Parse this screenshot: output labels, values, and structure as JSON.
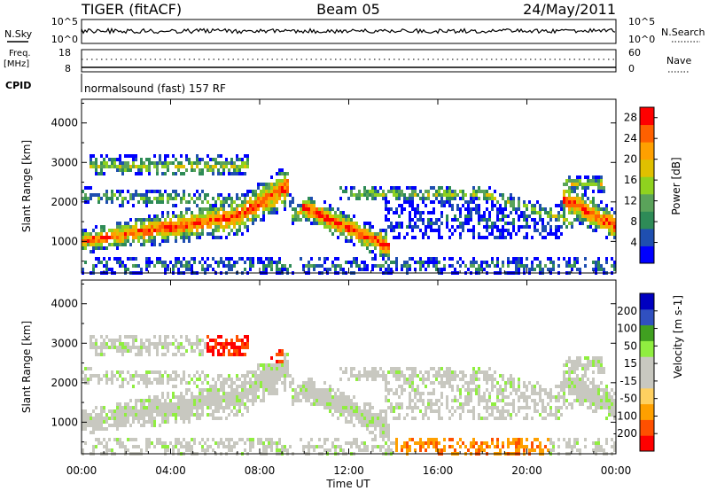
{
  "header": {
    "left": "TIGER (fitACF)",
    "center": "Beam 05",
    "right": "24/May/2011"
  },
  "top_panels": {
    "nsky_label": "N.Sky",
    "nsky_ticks": [
      "10^5",
      "10^0"
    ],
    "nsearch_label": "N.Search",
    "nsearch_ticks": [
      "10^5",
      "10^0"
    ],
    "freq_label_line1": "Freq.",
    "freq_label_line2": "[MHz]",
    "freq_ticks": [
      "18",
      "8"
    ],
    "nave_label": "Nave",
    "nave_ticks": [
      "60",
      "0"
    ],
    "cpid_label": "CPID",
    "cpid_text": "normalsound (fast) 157 RF"
  },
  "colors": {
    "power": [
      "#0000ff",
      "#1f4fb0",
      "#2e8b57",
      "#5aa35a",
      "#8fd21f",
      "#e0c000",
      "#ffa000",
      "#ff6000",
      "#ff0000"
    ],
    "velocity": [
      "#ff0000",
      "#ff5000",
      "#ffa000",
      "#ffd060",
      "#c8c8c0",
      "#c8c8c0",
      "#90ee40",
      "#40a020",
      "#3050c0",
      "#0000c0"
    ]
  },
  "chart_data": [
    {
      "type": "heatmap",
      "name": "power",
      "xlabel": "",
      "ylabel": "Slant Range [km]",
      "x_ticks": [
        "00:00",
        "04:00",
        "08:00",
        "12:00",
        "16:00",
        "20:00",
        "00:00"
      ],
      "x_range_hours": [
        0,
        24
      ],
      "y_ticks": [
        1000,
        2000,
        3000,
        4000
      ],
      "y_range_km": [
        200,
        4600
      ],
      "colorbar_label": "Power [dB]",
      "colorbar_ticks": [
        4,
        8,
        12,
        16,
        20,
        24,
        28
      ],
      "colorbar_range": [
        0,
        30
      ]
    },
    {
      "type": "heatmap",
      "name": "velocity",
      "xlabel": "Time UT",
      "ylabel": "Slant Range [km]",
      "x_ticks": [
        "00:00",
        "04:00",
        "08:00",
        "12:00",
        "16:00",
        "20:00",
        "00:00"
      ],
      "x_range_hours": [
        0,
        24
      ],
      "y_ticks": [
        1000,
        2000,
        3000,
        4000
      ],
      "y_range_km": [
        200,
        4600
      ],
      "colorbar_label": "Velocity [m s-1]",
      "colorbar_ticks": [
        200,
        100,
        50,
        15,
        -15,
        -50,
        -100,
        -200
      ]
    }
  ]
}
